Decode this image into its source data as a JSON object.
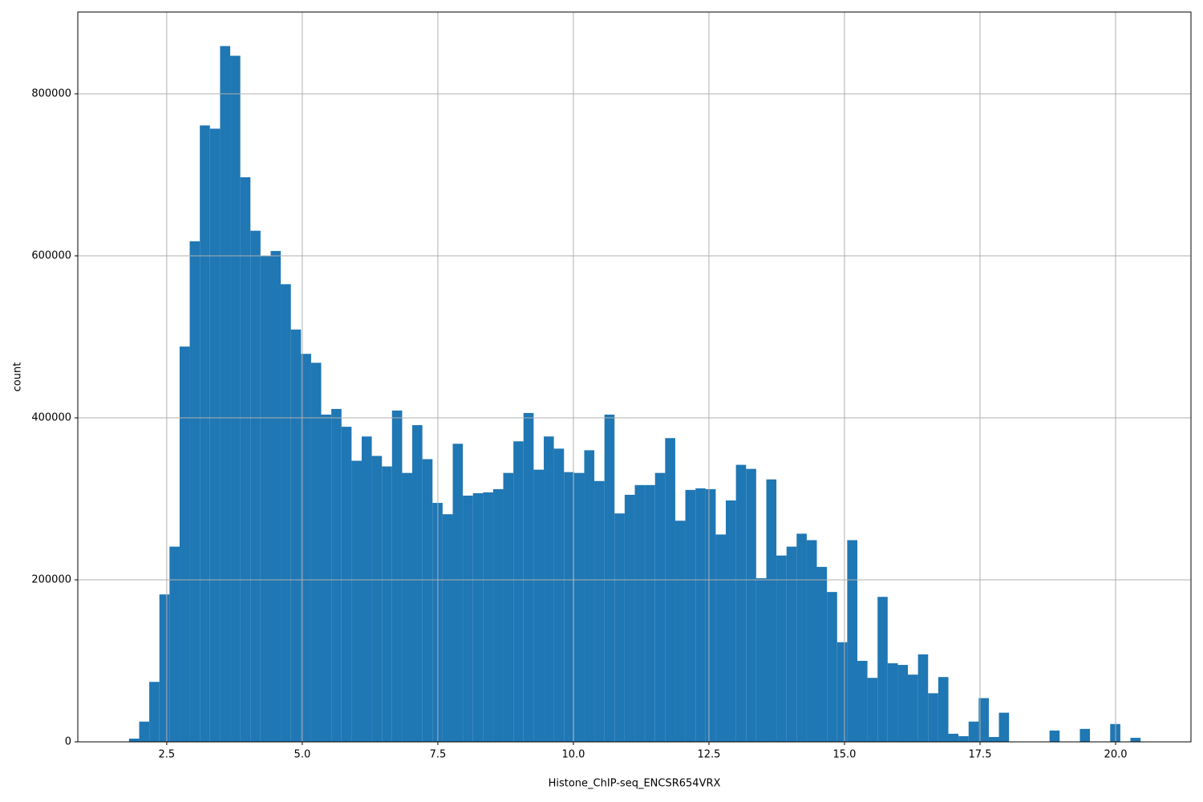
{
  "chart_data": {
    "type": "histogram",
    "xlabel": "Histone_ChIP-seq_ENCSR654VRX",
    "ylabel": "count",
    "color": "#1f77b4",
    "grid": true,
    "bins": [
      1.805,
      1.992,
      2.178,
      2.365,
      2.551,
      2.738,
      2.924,
      3.111,
      3.297,
      3.484,
      3.671,
      3.857,
      4.044,
      4.23,
      4.417,
      4.603,
      4.79,
      4.976,
      5.163,
      5.349,
      5.536,
      5.723,
      5.909,
      6.096,
      6.282,
      6.469,
      6.655,
      6.842,
      7.028,
      7.215,
      7.402,
      7.588,
      7.775,
      7.961,
      8.148,
      8.334,
      8.521,
      8.707,
      8.894,
      9.08,
      9.267,
      9.454,
      9.64,
      9.827,
      10.013,
      10.2,
      10.386,
      10.573,
      10.759,
      10.946,
      11.133,
      11.319,
      11.506,
      11.692,
      11.879,
      12.065,
      12.252,
      12.438,
      12.625,
      12.811,
      12.998,
      13.185,
      13.371,
      13.558,
      13.744,
      13.931,
      14.117,
      14.304,
      14.49,
      14.677,
      14.864,
      15.05,
      15.237,
      15.423,
      15.61,
      15.796,
      15.983,
      16.169,
      16.356,
      16.542,
      16.729,
      16.916,
      17.102,
      17.289,
      17.475,
      17.662,
      17.848,
      18.035,
      18.221,
      18.408,
      18.595,
      18.781,
      18.968,
      19.154,
      19.341,
      19.527,
      19.714,
      19.9,
      20.087,
      20.273,
      20.46
    ],
    "values": [
      4000,
      25000,
      74000,
      182000,
      241000,
      488000,
      618000,
      761000,
      757000,
      859000,
      847000,
      697000,
      631000,
      600000,
      606000,
      565000,
      509000,
      479000,
      468000,
      404000,
      411000,
      389000,
      347000,
      377000,
      353000,
      340000,
      409000,
      332000,
      391000,
      349000,
      295000,
      281000,
      368000,
      304000,
      307000,
      308000,
      312000,
      332000,
      371000,
      406000,
      336000,
      377000,
      362000,
      333000,
      332000,
      360000,
      322000,
      404000,
      282000,
      305000,
      317000,
      317000,
      332000,
      375000,
      273000,
      311000,
      313000,
      312000,
      256000,
      298000,
      342000,
      337000,
      202000,
      324000,
      230000,
      241000,
      257000,
      249000,
      216000,
      185000,
      123000,
      249000,
      100000,
      79000,
      179000,
      97000,
      95000,
      83000,
      108000,
      60000,
      80000,
      10000,
      7000,
      25000,
      54000,
      6000,
      36000,
      0,
      0,
      0,
      0,
      14000,
      0,
      0,
      16000,
      0,
      0,
      22000,
      0,
      5000
    ],
    "xlim": [
      0.86,
      21.39
    ],
    "ylim": [
      0,
      901000
    ],
    "xticks": [
      2.5,
      {
        "value": 5,
        "label": "5.0"
      },
      7.5,
      {
        "value": 10,
        "label": "10.0"
      },
      12.5,
      {
        "value": 15,
        "label": "15.0"
      },
      17.5,
      {
        "value": 20,
        "label": "20.0"
      }
    ],
    "yticks": [
      0,
      200000,
      400000,
      600000,
      800000
    ]
  }
}
